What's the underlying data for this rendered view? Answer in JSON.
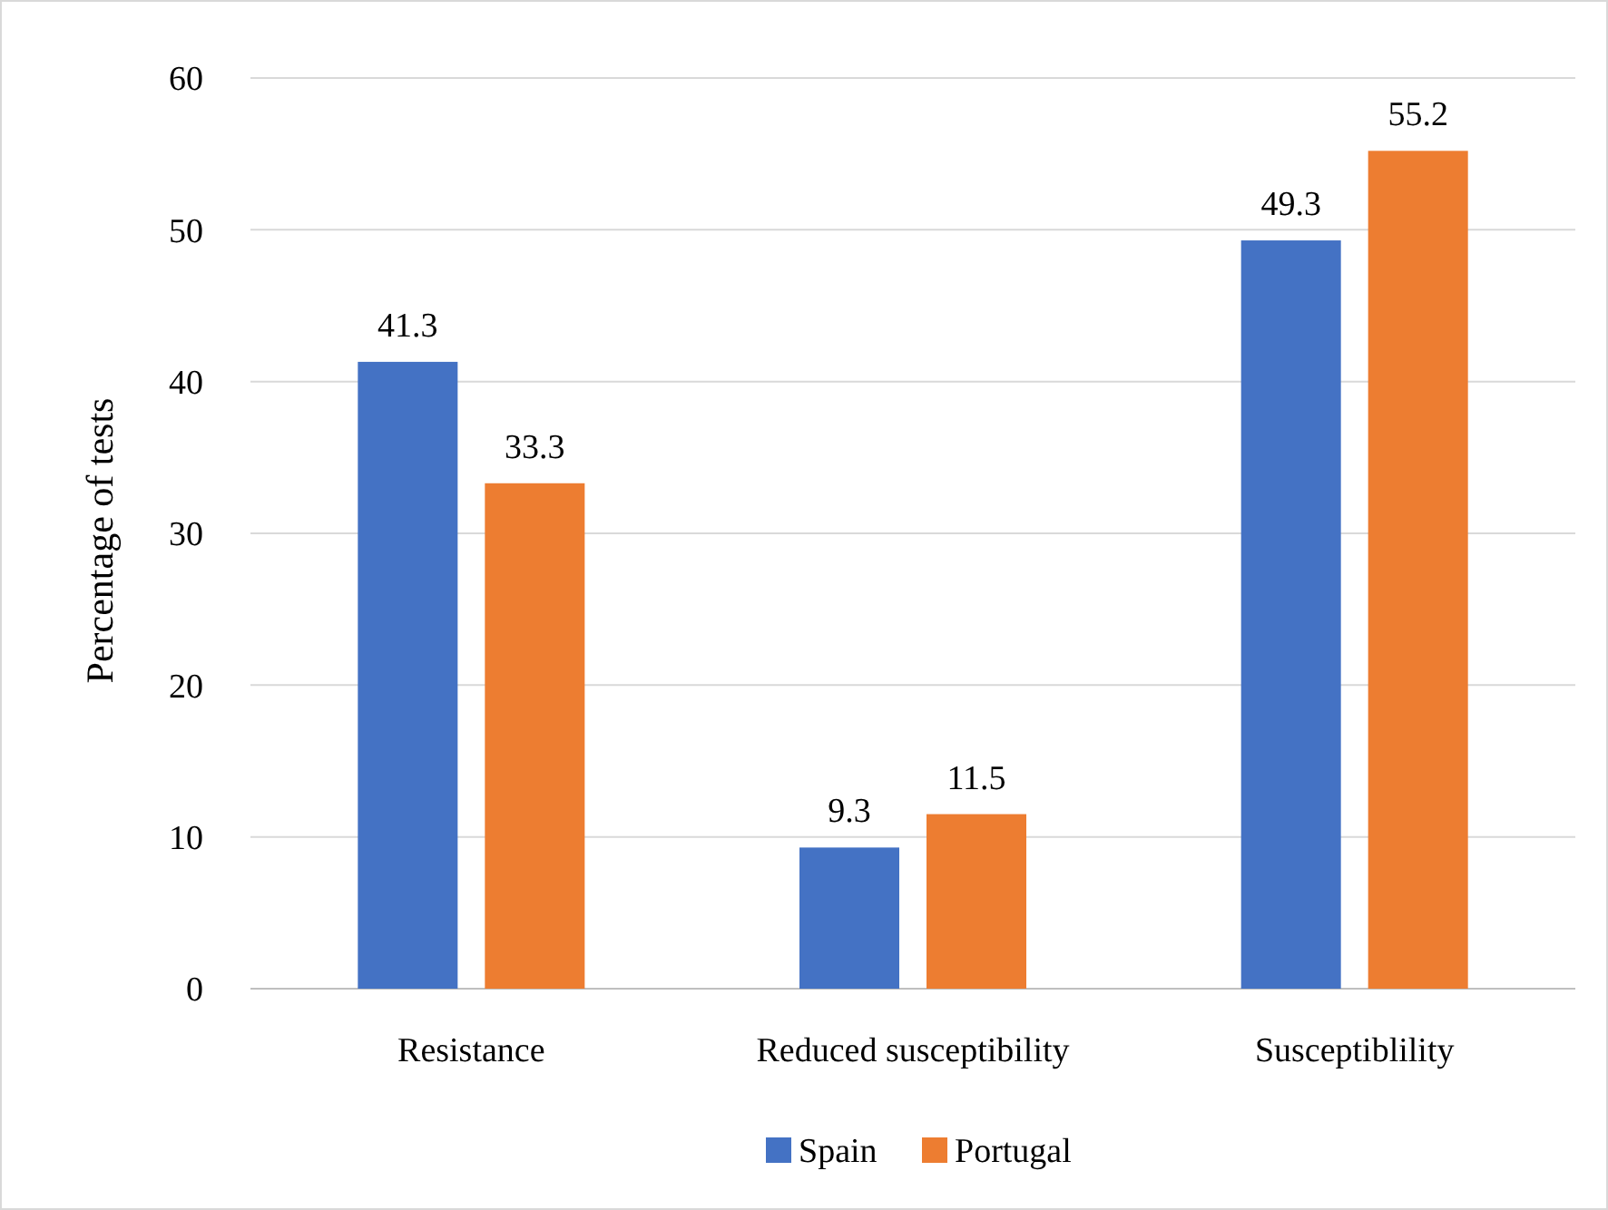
{
  "chart_data": {
    "type": "bar",
    "ylabel": "Percentage of tests",
    "categories": [
      "Resistance",
      "Reduced susceptibility",
      "Susceptiblility"
    ],
    "series": [
      {
        "name": "Spain",
        "color": "#4472c4",
        "values": [
          41.3,
          9.3,
          49.3
        ]
      },
      {
        "name": "Portugal",
        "color": "#ed7d31",
        "values": [
          33.3,
          11.5,
          55.2
        ]
      }
    ],
    "ylim": [
      0,
      60
    ],
    "yticks": [
      0,
      10,
      20,
      30,
      40,
      50,
      60
    ],
    "grid": "y",
    "legend": "bottom",
    "data_labels": true
  }
}
